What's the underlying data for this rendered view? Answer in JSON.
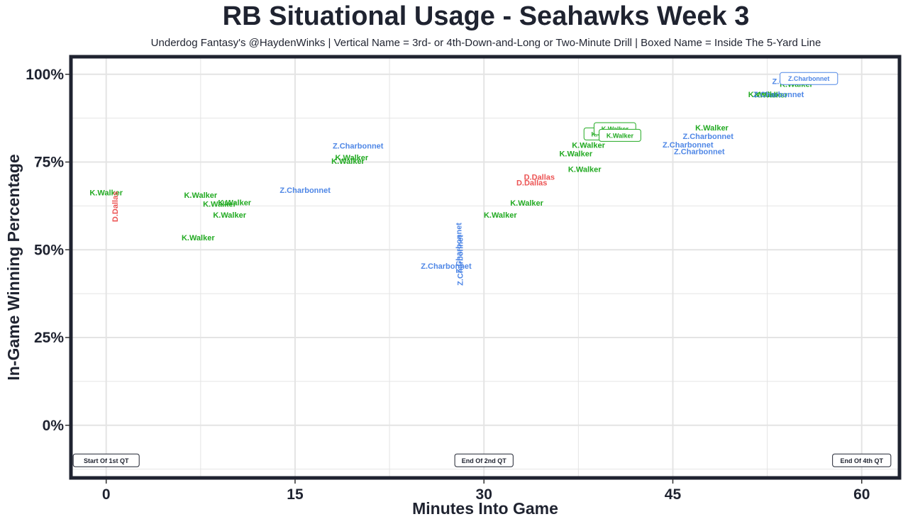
{
  "title": "RB Situational Usage - Seahawks Week 3",
  "subtitle": "Underdog Fantasy's @HaydenWinks | Vertical Name = 3rd- or 4th-Down-and-Long or Two-Minute Drill | Boxed Name = Inside The 5-Yard Line",
  "chart_data": {
    "type": "scatter",
    "title": "RB Situational Usage - Seahawks Week 3",
    "xlabel": "Minutes Into Game",
    "ylabel": "In-Game Winning Percentage",
    "xlim": [
      -2.8,
      63.0
    ],
    "ylim": [
      -15,
      105
    ],
    "x_ticks": [
      0,
      15,
      30,
      45,
      60
    ],
    "x_tick_labels": [
      "0",
      "15",
      "30",
      "45",
      "60"
    ],
    "y_ticks": [
      0,
      25,
      50,
      75,
      100
    ],
    "y_tick_labels": [
      "0%",
      "25%",
      "50%",
      "75%",
      "100%"
    ],
    "grid": true,
    "colors": {
      "K.Walker": "#22aa22",
      "Z.Charbonnet": "#4f87e6",
      "D.Dallas": "#ec5454",
      "frame": "#1f2330",
      "grid": "#e4e4e4"
    },
    "points": [
      {
        "x": 0.0,
        "y": 66.3,
        "player": "K.Walker",
        "vertical": false,
        "boxed": false
      },
      {
        "x": 0.7,
        "y": 62.3,
        "player": "D.Dallas",
        "vertical": true,
        "boxed": false
      },
      {
        "x": 7.5,
        "y": 65.6,
        "player": "K.Walker",
        "vertical": false,
        "boxed": false
      },
      {
        "x": 10.2,
        "y": 63.5,
        "player": "K.Walker",
        "vertical": false,
        "boxed": false
      },
      {
        "x": 9.0,
        "y": 63.1,
        "player": "K.Walker",
        "vertical": false,
        "boxed": false
      },
      {
        "x": 9.8,
        "y": 60.0,
        "player": "K.Walker",
        "vertical": false,
        "boxed": false
      },
      {
        "x": 7.3,
        "y": 53.5,
        "player": "K.Walker",
        "vertical": false,
        "boxed": false
      },
      {
        "x": 15.8,
        "y": 67.0,
        "player": "Z.Charbonnet",
        "vertical": false,
        "boxed": false
      },
      {
        "x": 20.0,
        "y": 79.6,
        "player": "Z.Charbonnet",
        "vertical": false,
        "boxed": false
      },
      {
        "x": 19.5,
        "y": 76.3,
        "player": "K.Walker",
        "vertical": false,
        "boxed": false
      },
      {
        "x": 19.2,
        "y": 75.3,
        "player": "K.Walker",
        "vertical": false,
        "boxed": false
      },
      {
        "x": 27.0,
        "y": 45.4,
        "player": "Z.Charbonnet",
        "vertical": false,
        "boxed": false
      },
      {
        "x": 28.0,
        "y": 50.5,
        "player": "Z.Charbonnet",
        "vertical": true,
        "boxed": false
      },
      {
        "x": 28.1,
        "y": 47.0,
        "player": "Z.Charbonnet",
        "vertical": true,
        "boxed": false
      },
      {
        "x": 31.3,
        "y": 60.0,
        "player": "K.Walker",
        "vertical": false,
        "boxed": false
      },
      {
        "x": 33.4,
        "y": 63.4,
        "player": "K.Walker",
        "vertical": false,
        "boxed": false
      },
      {
        "x": 34.4,
        "y": 70.8,
        "player": "D.Dallas",
        "vertical": false,
        "boxed": false
      },
      {
        "x": 33.8,
        "y": 69.1,
        "player": "D.Dallas",
        "vertical": false,
        "boxed": false
      },
      {
        "x": 38.0,
        "y": 73.0,
        "player": "K.Walker",
        "vertical": false,
        "boxed": false
      },
      {
        "x": 37.3,
        "y": 77.4,
        "player": "K.Walker",
        "vertical": false,
        "boxed": false
      },
      {
        "x": 38.3,
        "y": 79.8,
        "player": "K.Walker",
        "vertical": false,
        "boxed": false
      },
      {
        "x": 39.6,
        "y": 83.0,
        "player": "K.Walker",
        "vertical": false,
        "boxed": true
      },
      {
        "x": 40.4,
        "y": 84.5,
        "player": "K.Walker",
        "vertical": false,
        "boxed": true
      },
      {
        "x": 40.8,
        "y": 82.6,
        "player": "K.Walker",
        "vertical": false,
        "boxed": true
      },
      {
        "x": 46.2,
        "y": 80.0,
        "player": "Z.Charbonnet",
        "vertical": false,
        "boxed": false
      },
      {
        "x": 47.1,
        "y": 78.0,
        "player": "Z.Charbonnet",
        "vertical": false,
        "boxed": false
      },
      {
        "x": 47.8,
        "y": 82.4,
        "player": "Z.Charbonnet",
        "vertical": false,
        "boxed": false
      },
      {
        "x": 48.1,
        "y": 84.8,
        "player": "K.Walker",
        "vertical": false,
        "boxed": false
      },
      {
        "x": 52.3,
        "y": 94.3,
        "player": "K.Walker",
        "vertical": false,
        "boxed": false
      },
      {
        "x": 52.8,
        "y": 94.2,
        "player": "K.Walker",
        "vertical": false,
        "boxed": false
      },
      {
        "x": 53.4,
        "y": 94.3,
        "player": "Z.Charbonnet",
        "vertical": false,
        "boxed": false
      },
      {
        "x": 54.8,
        "y": 97.2,
        "player": "K.Walker",
        "vertical": false,
        "boxed": false
      },
      {
        "x": 54.9,
        "y": 98.0,
        "player": "Z.Charbonnet",
        "vertical": false,
        "boxed": false
      },
      {
        "x": 55.8,
        "y": 98.8,
        "player": "Z.Charbonnet",
        "vertical": false,
        "boxed": true
      }
    ],
    "annotations": [
      {
        "x": 0.0,
        "y": -10,
        "text": "Start Of 1st QT"
      },
      {
        "x": 30.0,
        "y": -10,
        "text": "End Of 2nd QT"
      },
      {
        "x": 60.0,
        "y": -10,
        "text": "End Of 4th QT"
      }
    ]
  }
}
